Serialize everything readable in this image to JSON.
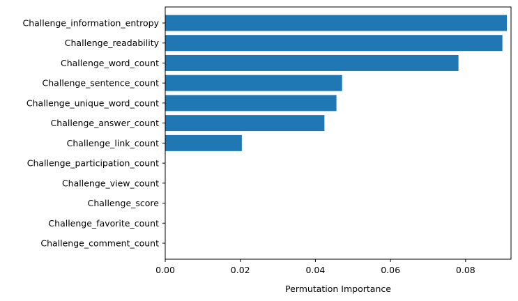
{
  "chart_data": {
    "type": "bar",
    "orientation": "horizontal",
    "categories": [
      "Challenge_information_entropy",
      "Challenge_readability",
      "Challenge_word_count",
      "Challenge_sentence_count",
      "Challenge_unique_word_count",
      "Challenge_answer_count",
      "Challenge_link_count",
      "Challenge_participation_count",
      "Challenge_view_count",
      "Challenge_score",
      "Challenge_favorite_count",
      "Challenge_comment_count"
    ],
    "values": [
      0.091,
      0.0898,
      0.0781,
      0.0471,
      0.0456,
      0.0424,
      0.0204,
      0,
      0,
      0,
      0,
      0
    ],
    "xlabel": "Permutation Importance",
    "ylabel": "",
    "title": "",
    "xlim": [
      0,
      0.0921
    ],
    "xticks": [
      0.0,
      0.02,
      0.04,
      0.06,
      0.08
    ],
    "xtick_labels": [
      "0.00",
      "0.02",
      "0.04",
      "0.06",
      "0.08"
    ],
    "grid": false,
    "legend": "none",
    "bar_color": "#1f77b4"
  }
}
